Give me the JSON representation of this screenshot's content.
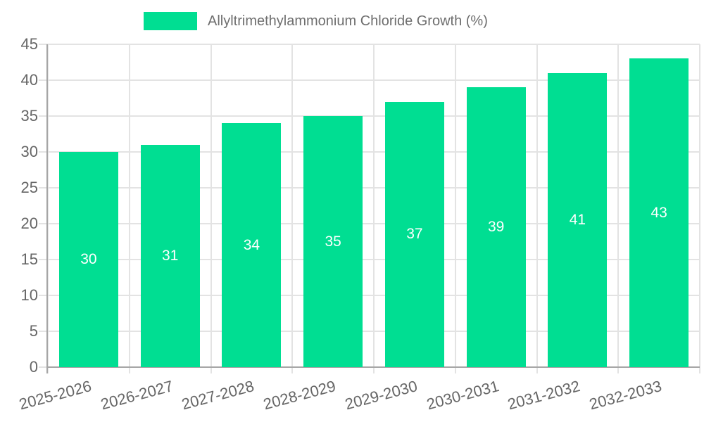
{
  "legend": {
    "label": "Allyltrimethylammonium Chloride Growth (%)"
  },
  "chart_data": {
    "type": "bar",
    "title": "",
    "series_name": "Allyltrimethylammonium Chloride Growth (%)",
    "categories": [
      "2025-2026",
      "2026-2027",
      "2027-2028",
      "2028-2029",
      "2029-2030",
      "2030-2031",
      "2031-2032",
      "2032-2033"
    ],
    "values": [
      30,
      31,
      34,
      35,
      37,
      39,
      41,
      43
    ],
    "data_labels": [
      "30",
      "31",
      "34",
      "35",
      "37",
      "39",
      "41",
      "43"
    ],
    "xlabel": "",
    "ylabel": "",
    "ylim": [
      0,
      45
    ],
    "ytick_step": 5,
    "yticks": [
      0,
      5,
      10,
      15,
      20,
      25,
      30,
      35,
      40,
      45
    ],
    "grid": true,
    "legend_position": "top",
    "x_label_rotation_deg": -15,
    "colors": {
      "bar": "#00DE92",
      "data_label": "#ffffff",
      "axis_text": "#666666",
      "grid_line": "#e3e3e3",
      "axis_line": "#a6a6a6",
      "background": "#ffffff"
    }
  }
}
